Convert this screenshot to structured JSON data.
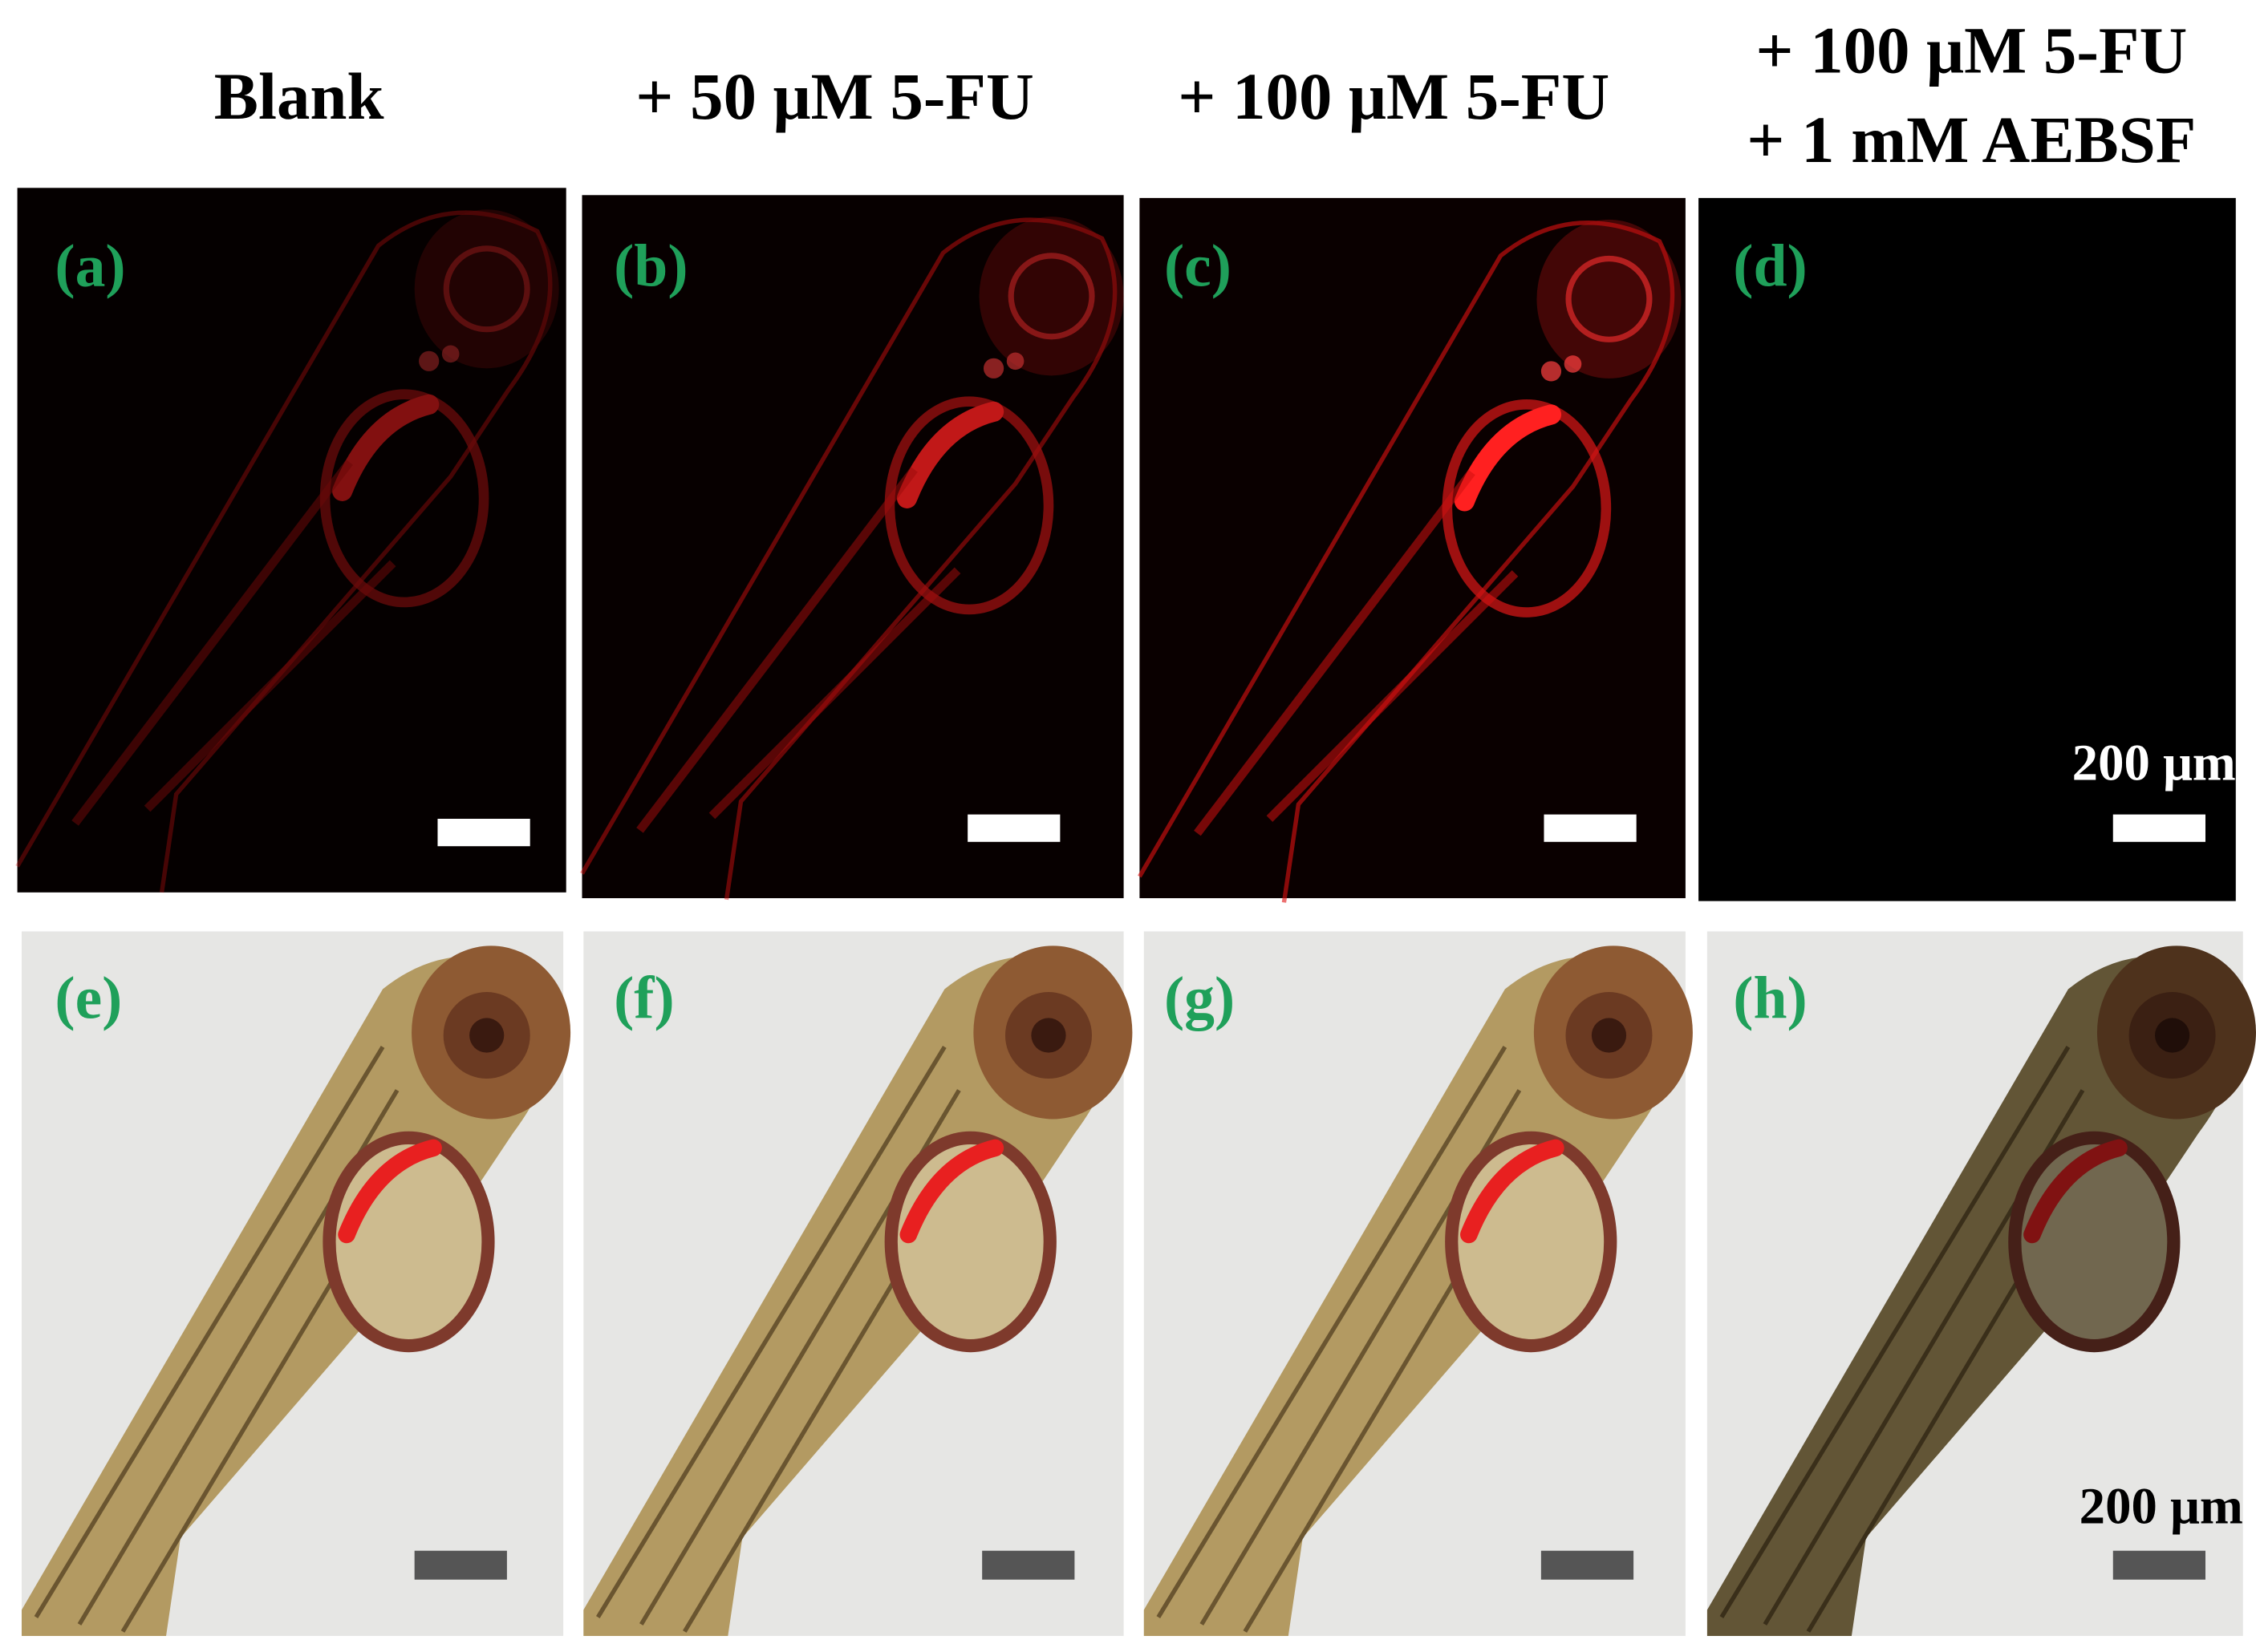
{
  "headers": [
    {
      "lines": [
        "Blank"
      ]
    },
    {
      "lines": [
        "+ 50 μM 5-FU"
      ]
    },
    {
      "lines": [
        "+ 100 μM 5-FU"
      ]
    },
    {
      "lines": [
        "+ 100 μM 5-FU",
        "+ 1 mM AEBSF"
      ]
    }
  ],
  "panels": {
    "top": [
      "(a)",
      "(b)",
      "(c)",
      "(d)"
    ],
    "bottom": [
      "(e)",
      "(f)",
      "(g)",
      "(h)"
    ]
  },
  "scale_bar_labels": {
    "top": "200 μm",
    "bottom": "200 μm"
  }
}
